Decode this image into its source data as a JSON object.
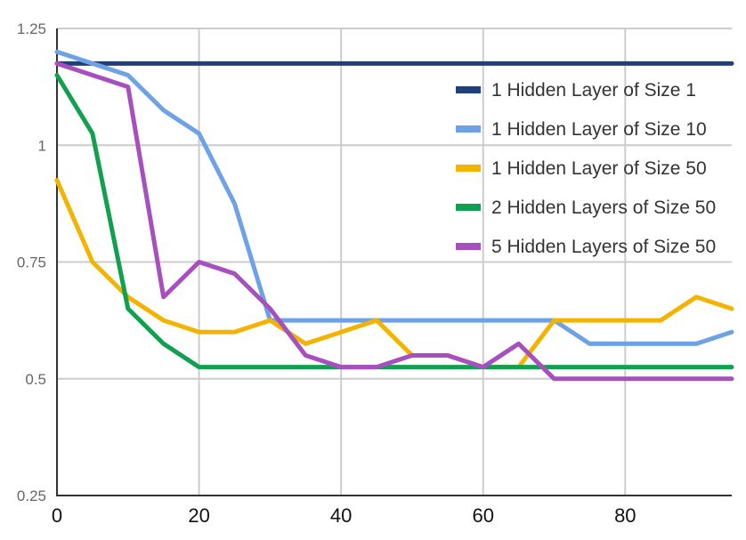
{
  "chart_data": {
    "type": "line",
    "title": "",
    "xlabel": "",
    "ylabel": "",
    "xlim": [
      0,
      95
    ],
    "ylim": [
      0.25,
      1.25
    ],
    "x": [
      0,
      5,
      10,
      15,
      20,
      25,
      30,
      35,
      40,
      45,
      50,
      55,
      60,
      65,
      70,
      75,
      80,
      85,
      90,
      95
    ],
    "x_ticks": [
      0,
      20,
      40,
      60,
      80
    ],
    "x_tick_labels": [
      "0",
      "20",
      "40",
      "60",
      "80"
    ],
    "y_ticks": [
      0.25,
      0.5,
      0.75,
      1,
      1.25
    ],
    "y_tick_labels": [
      "0.25",
      "0.5",
      "0.75",
      "1",
      "1.25"
    ],
    "grid": true,
    "legend_position": "top-right",
    "series": [
      {
        "name": "1 Hidden Layer of Size 1",
        "color": "#1f3f7e",
        "values": [
          1.175,
          1.175,
          1.175,
          1.175,
          1.175,
          1.175,
          1.175,
          1.175,
          1.175,
          1.175,
          1.175,
          1.175,
          1.175,
          1.175,
          1.175,
          1.175,
          1.175,
          1.175,
          1.175,
          1.175
        ]
      },
      {
        "name": "1 Hidden Layer of Size 10",
        "color": "#6ea2e6",
        "values": [
          1.2,
          1.175,
          1.15,
          1.075,
          1.025,
          0.875,
          0.625,
          0.625,
          0.625,
          0.625,
          0.625,
          0.625,
          0.625,
          0.625,
          0.625,
          0.575,
          0.575,
          0.575,
          0.575,
          0.6
        ]
      },
      {
        "name": "1 Hidden Layer of Size 50",
        "color": "#f2b400",
        "values": [
          0.925,
          0.75,
          0.675,
          0.625,
          0.6,
          0.6,
          0.625,
          0.575,
          0.6,
          0.625,
          0.55,
          0.55,
          0.525,
          0.525,
          0.625,
          0.625,
          0.625,
          0.625,
          0.675,
          0.65
        ]
      },
      {
        "name": "2 Hidden Layers of Size 50",
        "color": "#10a050",
        "values": [
          1.15,
          1.025,
          0.65,
          0.575,
          0.525,
          0.525,
          0.525,
          0.525,
          0.525,
          0.525,
          0.525,
          0.525,
          0.525,
          0.525,
          0.525,
          0.525,
          0.525,
          0.525,
          0.525,
          0.525
        ]
      },
      {
        "name": "5 Hidden Layers of Size 50",
        "color": "#a84fc0",
        "values": [
          1.175,
          1.15,
          1.125,
          0.675,
          0.75,
          0.725,
          0.65,
          0.55,
          0.525,
          0.525,
          0.55,
          0.55,
          0.525,
          0.575,
          0.5,
          0.5,
          0.5,
          0.5,
          0.5,
          0.5
        ]
      }
    ]
  }
}
